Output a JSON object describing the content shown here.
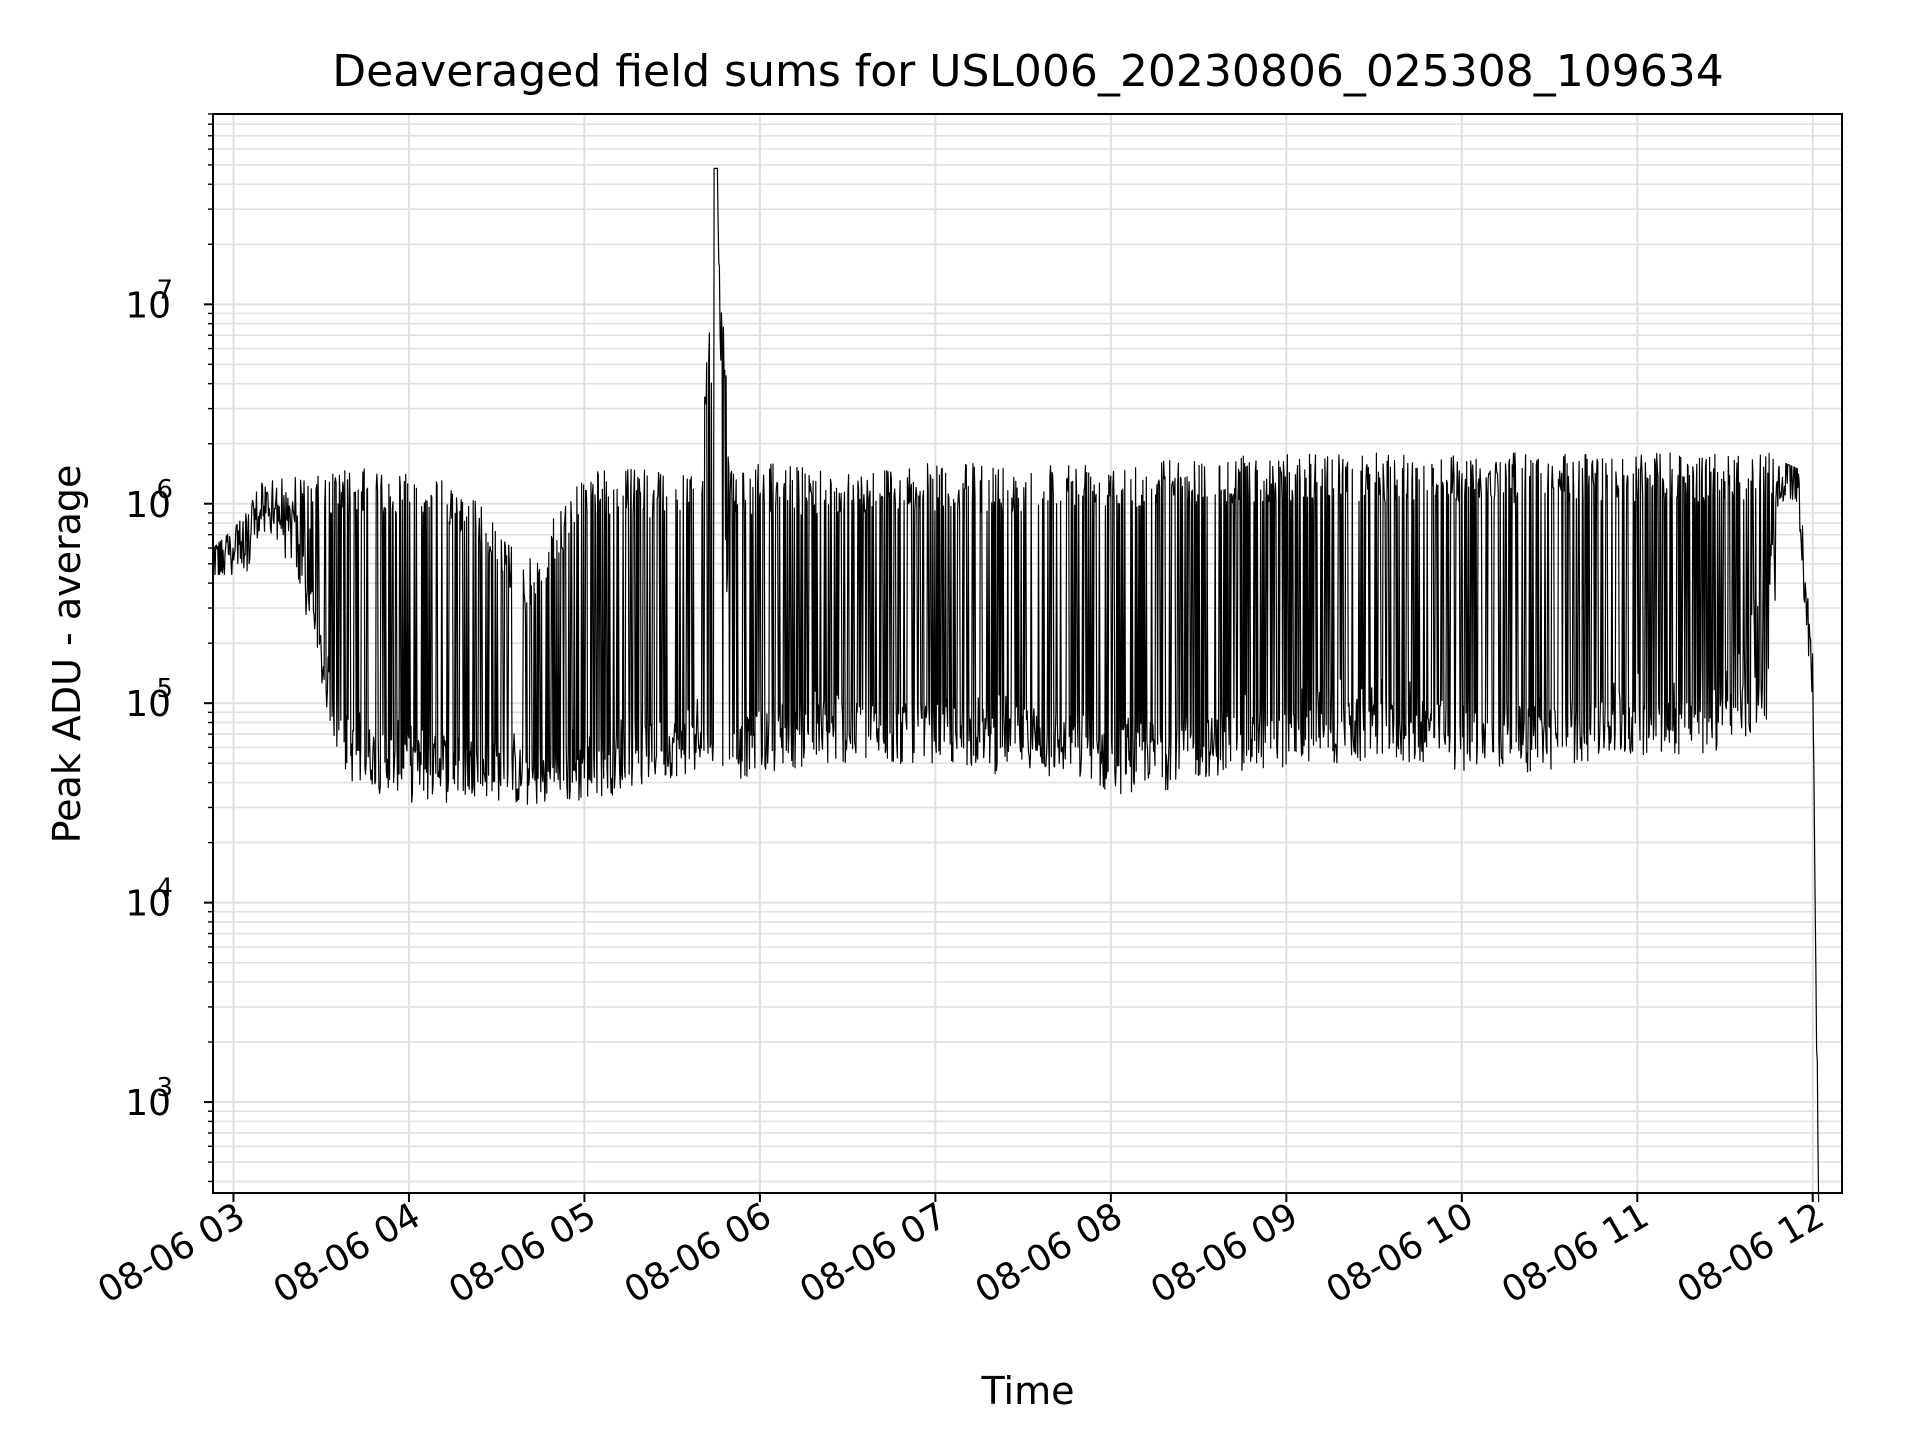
{
  "chart_data": {
    "type": "line",
    "title": "Deaveraged field sums for USL006_20230806_025308_109634",
    "xlabel": "Time",
    "ylabel": "Peak ADU - average",
    "yscale": "log",
    "ylim": [
      350,
      90000000
    ],
    "xlim": [
      "2023-08-06 02:53",
      "2023-08-06 12:10"
    ],
    "x_tick_labels": [
      "08-06 03",
      "08-06 04",
      "08-06 05",
      "08-06 06",
      "08-06 07",
      "08-06 08",
      "08-06 09",
      "08-06 10",
      "08-06 11",
      "08-06 12"
    ],
    "x_ticks": [
      "2023-08-06 03:00",
      "2023-08-06 04:00",
      "2023-08-06 05:00",
      "2023-08-06 06:00",
      "2023-08-06 07:00",
      "2023-08-06 08:00",
      "2023-08-06 09:00",
      "2023-08-06 10:00",
      "2023-08-06 11:00",
      "2023-08-06 12:00"
    ],
    "y_ticks": [
      {
        "value": 1000,
        "base": "10",
        "exp": "3"
      },
      {
        "value": 10000,
        "base": "10",
        "exp": "4"
      },
      {
        "value": 100000,
        "base": "10",
        "exp": "5"
      },
      {
        "value": 1000000,
        "base": "10",
        "exp": "6"
      },
      {
        "value": 10000000,
        "base": "10",
        "exp": "7"
      }
    ],
    "grid": true,
    "line_color": "#000000",
    "grid_color": "#e0e0e0",
    "series": [
      {
        "x": [
          "2023-08-06 02:53",
          "2023-08-06 03:00",
          "2023-08-06 03:05",
          "2023-08-06 03:10",
          "2023-08-06 03:15",
          "2023-08-06 03:20",
          "2023-08-06 03:25",
          "2023-08-06 03:30",
          "2023-08-06 03:35",
          "2023-08-06 03:40",
          "2023-08-06 03:50",
          "2023-08-06 04:00",
          "2023-08-06 04:20",
          "2023-08-06 04:40",
          "2023-08-06 05:00",
          "2023-08-06 05:20",
          "2023-08-06 05:40",
          "2023-08-06 05:45",
          "2023-08-06 05:50",
          "2023-08-06 06:00",
          "2023-08-06 06:30",
          "2023-08-06 07:00",
          "2023-08-06 07:30",
          "2023-08-06 08:00",
          "2023-08-06 08:30",
          "2023-08-06 09:00",
          "2023-08-06 09:30",
          "2023-08-06 10:00",
          "2023-08-06 10:30",
          "2023-08-06 11:00",
          "2023-08-06 11:30",
          "2023-08-06 11:45",
          "2023-08-06 11:50",
          "2023-08-06 11:55",
          "2023-08-06 12:00",
          "2023-08-06 12:02"
        ],
        "y": [
          520000,
          620000,
          550000,
          1100000,
          1000000,
          700000,
          380000,
          150000,
          90000,
          60000,
          55000,
          50000,
          50000,
          45000,
          50000,
          60000,
          80000,
          48000000,
          80000,
          70000,
          80000,
          70000,
          70000,
          55000,
          60000,
          80000,
          90000,
          70000,
          70000,
          90000,
          110000,
          500000,
          1400000,
          1300000,
          150000,
          350
        ],
        "envelope_max": [
          520000,
          650000,
          800000,
          1200000,
          1300000,
          1500000,
          1300000,
          1400000,
          1500000,
          1500000,
          1500000,
          1500000,
          1200000,
          500000,
          1500000,
          1500000,
          1600000,
          48000000,
          1500000,
          1600000,
          1500000,
          1600000,
          1600000,
          1700000,
          1700000,
          1800000,
          1800000,
          1800000,
          1800000,
          1800000,
          1800000,
          1800000,
          1400000,
          1300000,
          150000,
          350
        ],
        "envelope_min": [
          520000,
          520000,
          500000,
          700000,
          650000,
          500000,
          250000,
          120000,
          60000,
          40000,
          38000,
          35000,
          35000,
          30000,
          32000,
          40000,
          45000,
          50000,
          40000,
          45000,
          50000,
          50000,
          48000,
          40000,
          42000,
          48000,
          50000,
          50000,
          48000,
          55000,
          55000,
          80000,
          1300000,
          1200000,
          70000,
          350
        ]
      }
    ]
  }
}
